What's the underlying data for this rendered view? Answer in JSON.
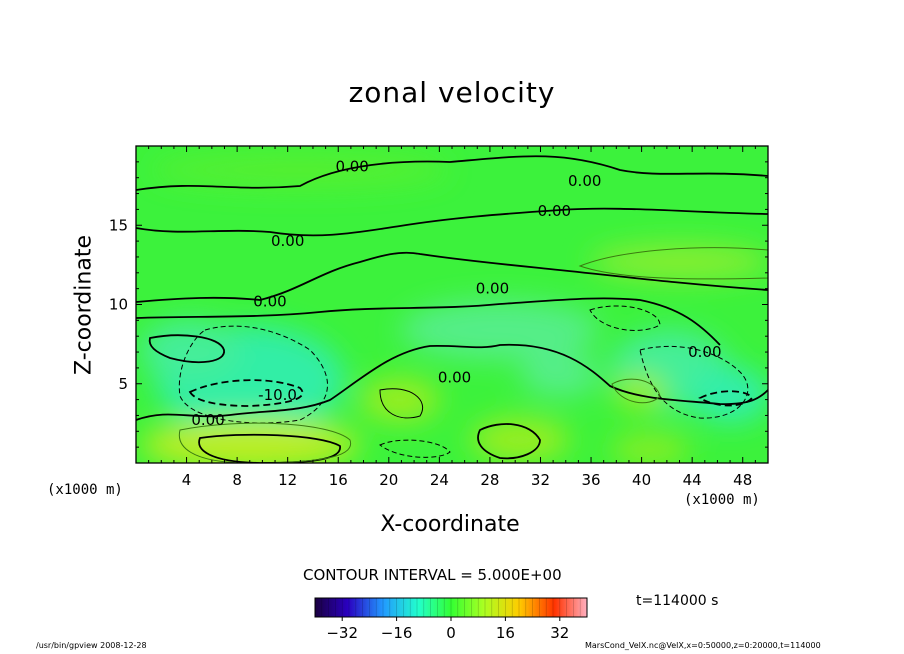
{
  "chart_data": {
    "type": "heatmap",
    "title": "zonal velocity",
    "xlabel": "X-coordinate",
    "ylabel": "Z-coordinate",
    "x_unit": "(x1000 m)",
    "xlim": [
      0,
      50
    ],
    "ylim": [
      0,
      20
    ],
    "x_ticks": [
      4,
      8,
      12,
      16,
      20,
      24,
      28,
      32,
      36,
      40,
      44,
      48
    ],
    "y_ticks": [
      5,
      10,
      15
    ],
    "contour_interval_text": "CONTOUR INTERVAL = 5.000E+00",
    "contour_labels": [
      {
        "text": "0.00",
        "x": 17.1,
        "z": 18.7
      },
      {
        "text": "0.00",
        "x": 35.5,
        "z": 17.8
      },
      {
        "text": "0.00",
        "x": 33.1,
        "z": 15.9
      },
      {
        "text": "0.00",
        "x": 12.0,
        "z": 14.0
      },
      {
        "text": "0.00",
        "x": 10.6,
        "z": 10.2
      },
      {
        "text": "0.00",
        "x": 28.2,
        "z": 11.0
      },
      {
        "text": "0.00",
        "x": 45.0,
        "z": 7.0
      },
      {
        "text": "0.00",
        "x": 25.2,
        "z": 5.4
      },
      {
        "text": "0.00",
        "x": 5.7,
        "z": 2.7
      },
      {
        "text": "-10.0",
        "x": 11.2,
        "z": 4.3
      }
    ],
    "colorbar": {
      "colormap": "rainbow",
      "range": [
        -40,
        40
      ],
      "ticks": [
        -32,
        -16,
        0,
        16,
        32
      ],
      "tick_labels": [
        "−32",
        "−16",
        "0",
        "16",
        "32"
      ]
    },
    "time_label": "t=114000 s",
    "grid": false
  },
  "colors": {
    "background_field": "#33ff33",
    "negative_field": "#44eeaa",
    "positive_field": "#aaee22",
    "contour_line": "#000000"
  },
  "footer": {
    "left": "/usr/bin/gpview   2008-12-28",
    "right": "MarsCond_VelX.nc@VelX,x=0:50000,z=0:20000,t=114000"
  }
}
